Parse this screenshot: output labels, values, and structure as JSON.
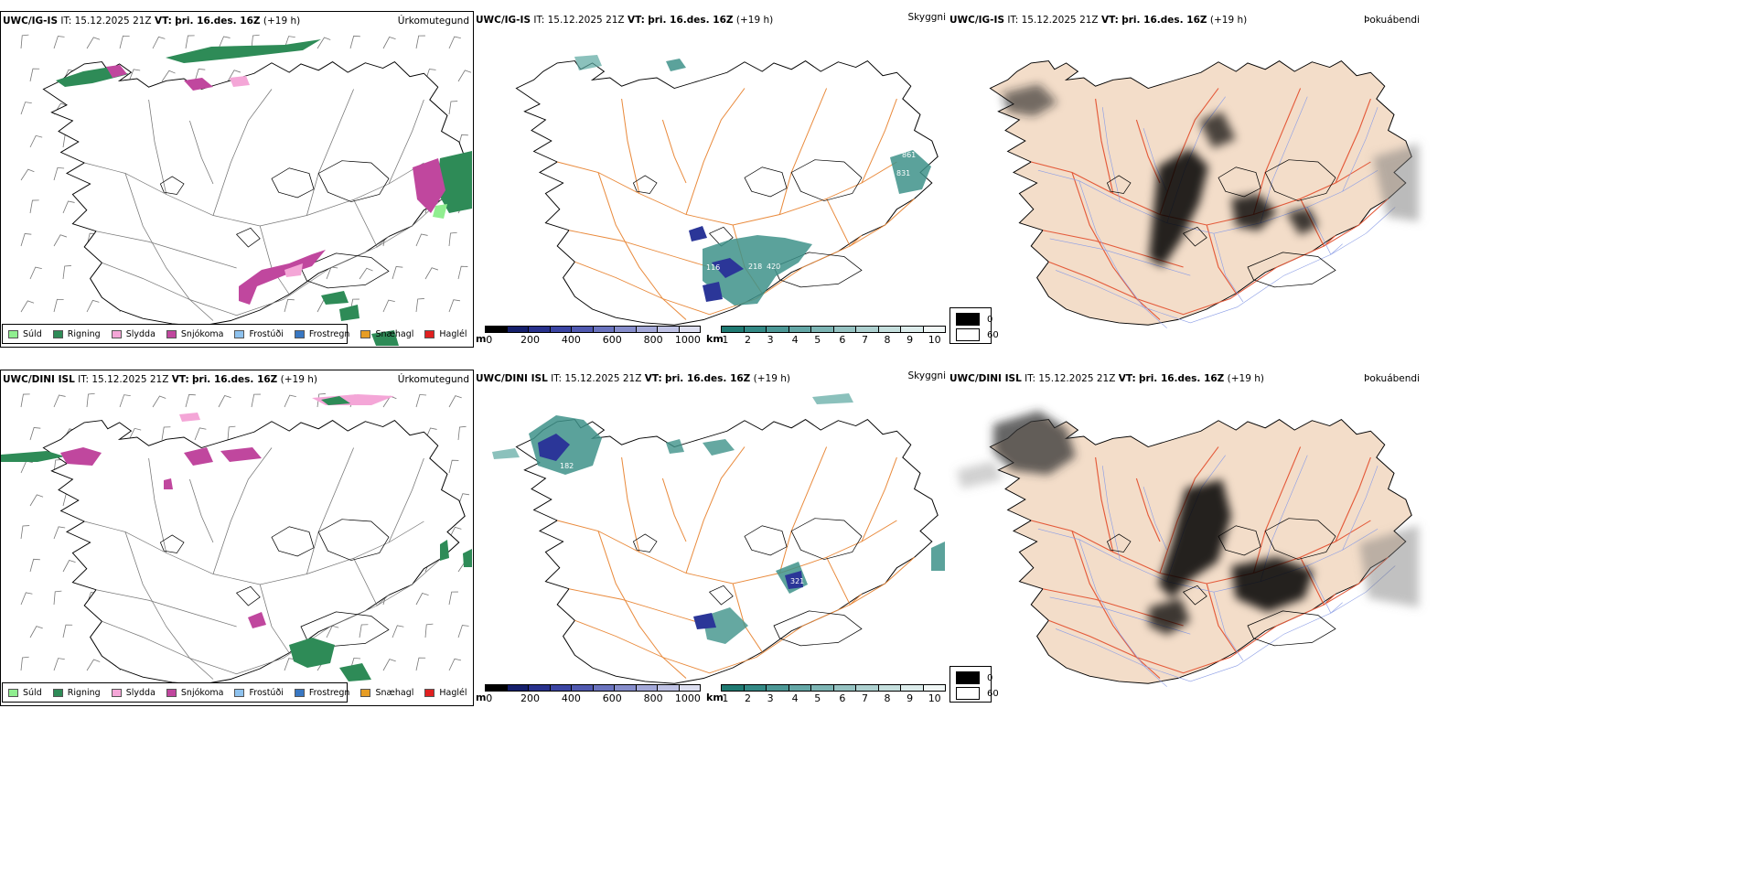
{
  "rows": [
    {
      "left": {
        "model": "UWC/IG-IS",
        "it_label": "IT:",
        "it": "15.12.2025 21Z",
        "vt_label": "VT:",
        "vt": "þri. 16.des. 16Z",
        "lead": "(+19 h)",
        "variable": "Úrkomutegund"
      },
      "mid": {
        "model": "UWC/IG-IS",
        "it_label": "IT:",
        "it": "15.12.2025 21Z",
        "vt_label": "VT:",
        "vt": "þri. 16.des. 16Z",
        "lead": "(+19 h)",
        "variable": "Skyggni",
        "labels": [
          "861",
          "831",
          "116",
          "218",
          "420"
        ]
      },
      "right": {
        "model": "UWC/IG-IS",
        "it_label": "IT:",
        "it": "15.12.2025 21Z",
        "vt_label": "VT:",
        "vt": "þri. 16.des. 16Z",
        "lead": "(+19 h)",
        "variable": "Þokuábendi"
      }
    },
    {
      "left": {
        "model": "UWC/DINI ISL",
        "it_label": "IT:",
        "it": "15.12.2025 21Z",
        "vt_label": "VT:",
        "vt": "þri. 16.des. 16Z",
        "lead": "(+19 h)",
        "variable": "Úrkomutegund"
      },
      "mid": {
        "model": "UWC/DINI ISL",
        "it_label": "IT:",
        "it": "15.12.2025 21Z",
        "vt_label": "VT:",
        "vt": "þri. 16.des. 16Z",
        "lead": "(+19 h)",
        "variable": "Skyggni",
        "labels": [
          "182",
          "321"
        ]
      },
      "right": {
        "model": "UWC/DINI ISL",
        "it_label": "IT:",
        "it": "15.12.2025 21Z",
        "vt_label": "VT:",
        "vt": "þri. 16.des. 16Z",
        "lead": "(+19 h)",
        "variable": "Þokuábendi"
      }
    }
  ],
  "precip_legend": [
    {
      "label": "Súld",
      "color": "#90ee90"
    },
    {
      "label": "Rigning",
      "color": "#2e8b57"
    },
    {
      "label": "Slydda",
      "color": "#f4a6d7"
    },
    {
      "label": "Snjókoma",
      "color": "#c0479e"
    },
    {
      "label": "Frostúði",
      "color": "#8ec2ee"
    },
    {
      "label": "Frostregn",
      "color": "#3877c2"
    },
    {
      "label": "Snæhagl",
      "color": "#e69d25"
    },
    {
      "label": "Haglél",
      "color": "#e02020"
    }
  ],
  "ceiling_bar": {
    "unit": "m",
    "ticks": [
      "0",
      "200",
      "400",
      "600",
      "800",
      "1000"
    ],
    "colors": [
      "#000000",
      "#151f6b",
      "#28318c",
      "#3b45a3",
      "#5059b0",
      "#6a73be",
      "#868dcb",
      "#a3a8d8",
      "#bfc2e4",
      "#dcdef0"
    ]
  },
  "visibility_bar": {
    "unit": "km",
    "ticks": [
      "1",
      "2",
      "3",
      "4",
      "5",
      "6",
      "7",
      "8",
      "9",
      "10"
    ],
    "colors": [
      "#1f7a72",
      "#338985",
      "#4c9896",
      "#64a7a6",
      "#7db5b4",
      "#96c3c2",
      "#aed1d0",
      "#c5dfdd",
      "#dceceb",
      "#f0f7f6"
    ]
  },
  "fog_legend": {
    "values": [
      "0",
      "60"
    ],
    "colors": [
      "#000000",
      "#ffffff"
    ]
  },
  "palette": {
    "map_fill_fog": "#f3ddc9",
    "roads": "#e98a3c",
    "roads_fog": "#e45a3a",
    "rivers": "#8c9ee6",
    "outline": "#000000",
    "glacier": "#000000",
    "rain": "#2e8b57",
    "snow": "#c0479e",
    "sleet": "#f4a6d7",
    "drizzle": "#90ee90",
    "cloud_teal": "#3e928a",
    "cloud_blue": "#2b3698"
  }
}
